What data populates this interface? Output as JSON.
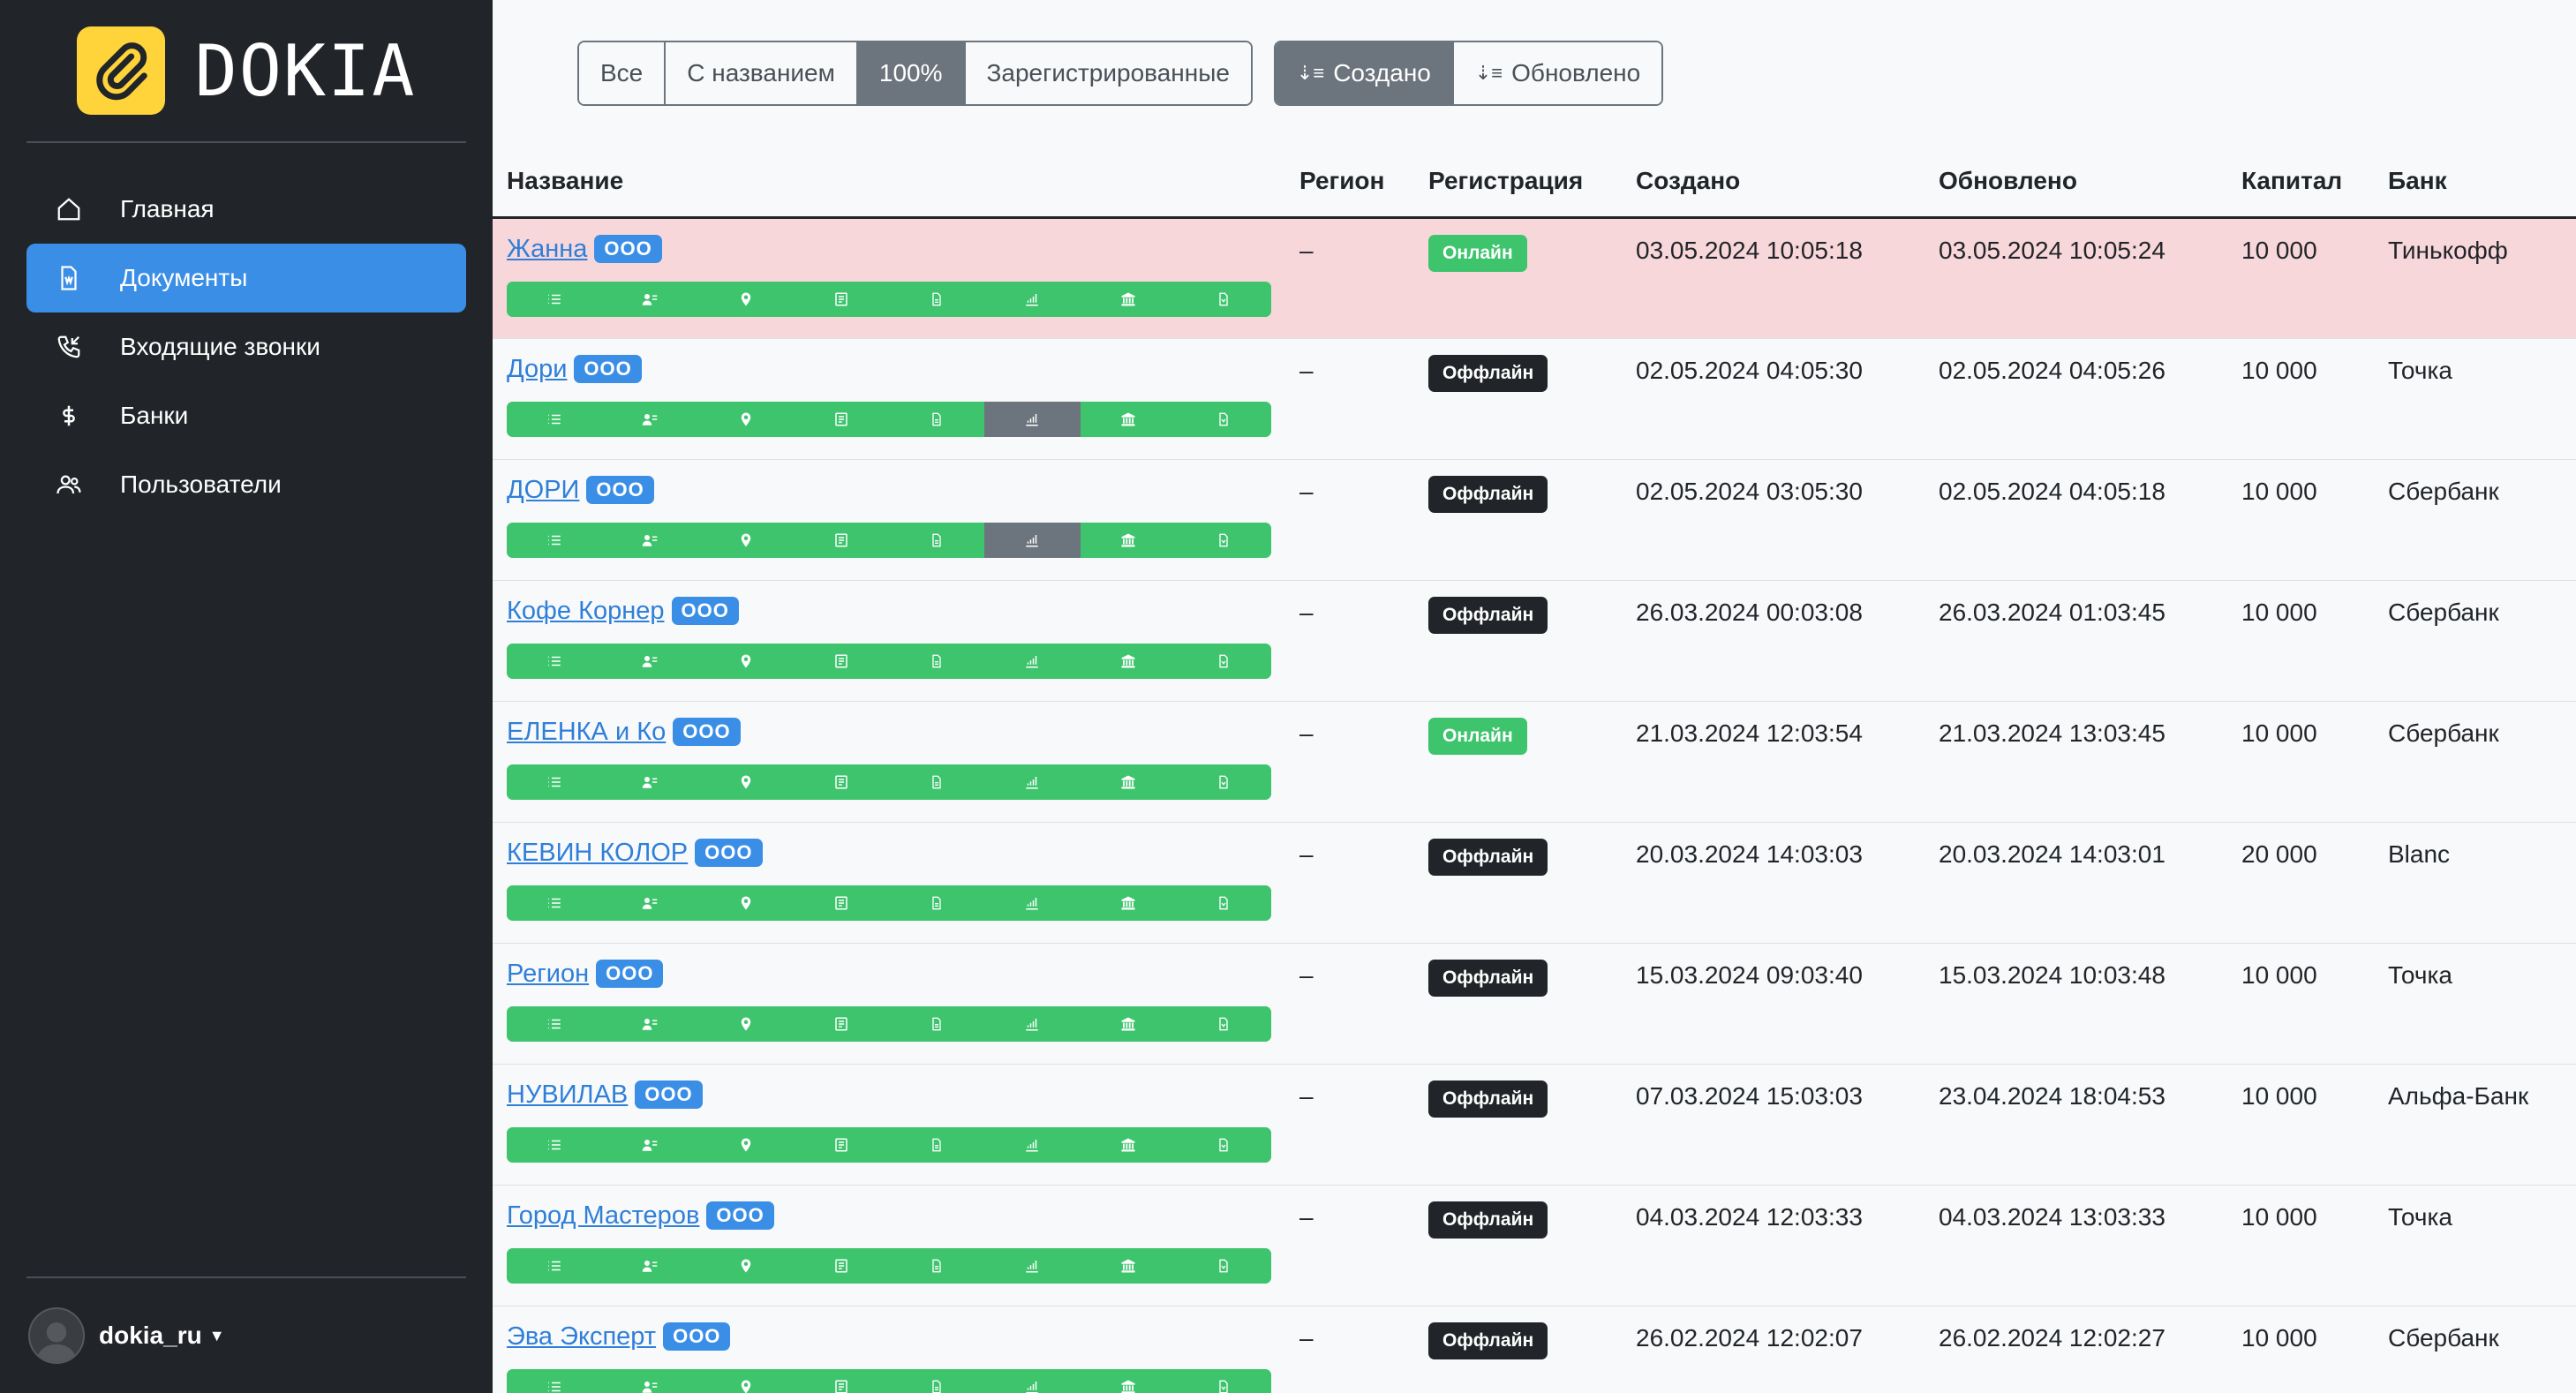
{
  "app": {
    "brand": "DOKIA"
  },
  "sidebar": {
    "items": [
      {
        "label": "Главная",
        "icon": "home-icon",
        "active": false
      },
      {
        "label": "Документы",
        "icon": "document-icon",
        "active": true
      },
      {
        "label": "Входящие звонки",
        "icon": "phone-incoming-icon",
        "active": false
      },
      {
        "label": "Банки",
        "icon": "dollar-icon",
        "active": false
      },
      {
        "label": "Пользователи",
        "icon": "users-icon",
        "active": false
      }
    ],
    "user": "dokia_ru"
  },
  "filters": {
    "group1": [
      {
        "label": "Все",
        "active": false
      },
      {
        "label": "С названием",
        "active": false
      },
      {
        "label": "100%",
        "active": true
      },
      {
        "label": "Зарегистрированные",
        "active": false
      }
    ],
    "group2": [
      {
        "label": "Создано",
        "active": true
      },
      {
        "label": "Обновлено",
        "active": false
      }
    ]
  },
  "table": {
    "headers": [
      "Название",
      "Регион",
      "Регистрация",
      "Создано",
      "Обновлено",
      "Капитал",
      "Банк"
    ],
    "badge": "ООО",
    "rows": [
      {
        "name": "Жанна",
        "region": "–",
        "registration": "Онлайн",
        "online": true,
        "created": "03.05.2024 10:05:18",
        "updated": "03.05.2024 10:05:24",
        "capital": "10 000",
        "bank": "Тинькофф",
        "highlight": true,
        "gray_segments": []
      },
      {
        "name": "Дори",
        "region": "–",
        "registration": "Оффлайн",
        "online": false,
        "created": "02.05.2024 04:05:30",
        "updated": "02.05.2024 04:05:26",
        "capital": "10 000",
        "bank": "Точка",
        "highlight": false,
        "gray_segments": [
          5
        ]
      },
      {
        "name": "ДОРИ",
        "region": "–",
        "registration": "Оффлайн",
        "online": false,
        "created": "02.05.2024 03:05:30",
        "updated": "02.05.2024 04:05:18",
        "capital": "10 000",
        "bank": "Сбербанк",
        "highlight": false,
        "gray_segments": [
          5
        ]
      },
      {
        "name": "Кофе Корнер",
        "region": "–",
        "registration": "Оффлайн",
        "online": false,
        "created": "26.03.2024 00:03:08",
        "updated": "26.03.2024 01:03:45",
        "capital": "10 000",
        "bank": "Сбербанк",
        "highlight": false,
        "gray_segments": []
      },
      {
        "name": "ЕЛЕНКА и Ко",
        "region": "–",
        "registration": "Онлайн",
        "online": true,
        "created": "21.03.2024 12:03:54",
        "updated": "21.03.2024 13:03:45",
        "capital": "10 000",
        "bank": "Сбербанк",
        "highlight": false,
        "gray_segments": []
      },
      {
        "name": "КЕВИН КОЛОР",
        "region": "–",
        "registration": "Оффлайн",
        "online": false,
        "created": "20.03.2024 14:03:03",
        "updated": "20.03.2024 14:03:01",
        "capital": "20 000",
        "bank": "Blanc",
        "highlight": false,
        "gray_segments": []
      },
      {
        "name": "Регион",
        "region": "–",
        "registration": "Оффлайн",
        "online": false,
        "created": "15.03.2024 09:03:40",
        "updated": "15.03.2024 10:03:48",
        "capital": "10 000",
        "bank": "Точка",
        "highlight": false,
        "gray_segments": []
      },
      {
        "name": "НУВИЛАВ",
        "region": "–",
        "registration": "Оффлайн",
        "online": false,
        "created": "07.03.2024 15:03:03",
        "updated": "23.04.2024 18:04:53",
        "capital": "10 000",
        "bank": "Альфа-Банк",
        "highlight": false,
        "gray_segments": []
      },
      {
        "name": "Город Мастеров",
        "region": "–",
        "registration": "Оффлайн",
        "online": false,
        "created": "04.03.2024 12:03:33",
        "updated": "04.03.2024 13:03:33",
        "capital": "10 000",
        "bank": "Точка",
        "highlight": false,
        "gray_segments": []
      },
      {
        "name": "Эва Эксперт",
        "region": "–",
        "registration": "Оффлайн",
        "online": false,
        "created": "26.02.2024 12:02:07",
        "updated": "26.02.2024 12:02:27",
        "capital": "10 000",
        "bank": "Сбербанк",
        "highlight": false,
        "gray_segments": []
      }
    ],
    "segment_icons": [
      "list-icon",
      "person-card-icon",
      "map-pin-icon",
      "receipt-icon",
      "file-icon",
      "chart-icon",
      "bank-icon",
      "document-icon"
    ]
  },
  "colors": {
    "sidebar_bg": "#212529",
    "accent": "#3a8ee6",
    "success": "#3ec46d",
    "danger_row": "#f8d7da",
    "brand_yellow": "#ffd43b"
  }
}
